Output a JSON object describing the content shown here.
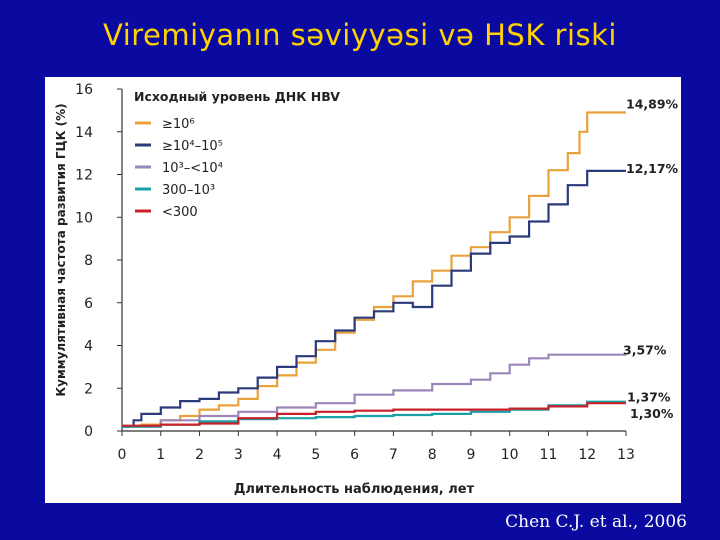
{
  "slide": {
    "title": "Viremiyanın səviyyəsi və HSK riski",
    "citation": "Chen C.J. et al., 2006"
  },
  "colors": {
    "background": "#0a0aa0",
    "title": "#ffd200"
  },
  "chart_data": {
    "type": "line",
    "title": "",
    "xlabel": "Длительность наблюдения, лет",
    "ylabel": "Куммулятивная частота развития ГЦК (%)",
    "xlim": [
      0,
      13
    ],
    "ylim": [
      0,
      16
    ],
    "x_ticks": [
      0,
      1,
      2,
      3,
      4,
      5,
      6,
      7,
      8,
      9,
      10,
      11,
      12,
      13
    ],
    "y_ticks": [
      0,
      2,
      4,
      6,
      8,
      10,
      12,
      14,
      16
    ],
    "grid": false,
    "legend": {
      "title": "Исходный уровень ДНК HBV",
      "placement": "top-left"
    },
    "series": [
      {
        "name": "≥10⁶",
        "color": "#e9a23b",
        "end_label": "14,89%",
        "points": [
          [
            0,
            0.2
          ],
          [
            0.5,
            0.3
          ],
          [
            1,
            0.5
          ],
          [
            1.5,
            0.7
          ],
          [
            2,
            1.0
          ],
          [
            2.5,
            1.2
          ],
          [
            3,
            1.5
          ],
          [
            3.5,
            2.1
          ],
          [
            4,
            2.6
          ],
          [
            4.5,
            3.2
          ],
          [
            5,
            3.8
          ],
          [
            5.5,
            4.6
          ],
          [
            6,
            5.2
          ],
          [
            6.5,
            5.8
          ],
          [
            7,
            6.3
          ],
          [
            7.5,
            7.0
          ],
          [
            8,
            7.5
          ],
          [
            8.5,
            8.2
          ],
          [
            9,
            8.6
          ],
          [
            9.5,
            9.3
          ],
          [
            10,
            10.0
          ],
          [
            10.5,
            11.0
          ],
          [
            11,
            12.2
          ],
          [
            11.5,
            13.0
          ],
          [
            11.8,
            14.0
          ],
          [
            12,
            14.9
          ],
          [
            13,
            14.9
          ]
        ]
      },
      {
        "name": "≥10⁴–10⁵",
        "color": "#2a3a7a",
        "end_label": "12,17%",
        "points": [
          [
            0,
            0.2
          ],
          [
            0.3,
            0.5
          ],
          [
            0.5,
            0.8
          ],
          [
            1,
            1.1
          ],
          [
            1.5,
            1.4
          ],
          [
            2,
            1.5
          ],
          [
            2.5,
            1.8
          ],
          [
            3,
            2.0
          ],
          [
            3.5,
            2.5
          ],
          [
            4,
            3.0
          ],
          [
            4.5,
            3.5
          ],
          [
            5,
            4.2
          ],
          [
            5.5,
            4.7
          ],
          [
            6,
            5.3
          ],
          [
            6.5,
            5.6
          ],
          [
            7,
            6.0
          ],
          [
            7.5,
            5.8
          ],
          [
            8,
            6.8
          ],
          [
            8.5,
            7.5
          ],
          [
            9,
            8.3
          ],
          [
            9.5,
            8.8
          ],
          [
            10,
            9.1
          ],
          [
            10.5,
            9.8
          ],
          [
            11,
            10.6
          ],
          [
            11.5,
            11.5
          ],
          [
            12,
            12.17
          ],
          [
            13,
            12.17
          ]
        ]
      },
      {
        "name": "10³–<10⁴",
        "color": "#9a86b8",
        "end_label": "3,57%",
        "points": [
          [
            0,
            0.2
          ],
          [
            1,
            0.5
          ],
          [
            2,
            0.7
          ],
          [
            3,
            0.9
          ],
          [
            4,
            1.1
          ],
          [
            5,
            1.3
          ],
          [
            6,
            1.7
          ],
          [
            7,
            1.9
          ],
          [
            8,
            2.2
          ],
          [
            9,
            2.4
          ],
          [
            9.5,
            2.7
          ],
          [
            10,
            3.1
          ],
          [
            10.5,
            3.4
          ],
          [
            11,
            3.57
          ],
          [
            13,
            3.57
          ]
        ]
      },
      {
        "name": "300–10³",
        "color": "#1aa0a8",
        "end_label": "1,37%",
        "points": [
          [
            0,
            0.2
          ],
          [
            1,
            0.3
          ],
          [
            2,
            0.45
          ],
          [
            3,
            0.55
          ],
          [
            4,
            0.6
          ],
          [
            5,
            0.65
          ],
          [
            6,
            0.7
          ],
          [
            7,
            0.75
          ],
          [
            8,
            0.8
          ],
          [
            9,
            0.9
          ],
          [
            10,
            1.0
          ],
          [
            11,
            1.2
          ],
          [
            12,
            1.37
          ],
          [
            13,
            1.37
          ]
        ]
      },
      {
        "name": "<300",
        "color": "#c8202a",
        "end_label": "1,30%",
        "points": [
          [
            0,
            0.25
          ],
          [
            1,
            0.3
          ],
          [
            2,
            0.35
          ],
          [
            3,
            0.6
          ],
          [
            4,
            0.8
          ],
          [
            5,
            0.9
          ],
          [
            6,
            0.95
          ],
          [
            7,
            1.0
          ],
          [
            8,
            1.0
          ],
          [
            9,
            1.0
          ],
          [
            10,
            1.05
          ],
          [
            11,
            1.15
          ],
          [
            12,
            1.3
          ],
          [
            13,
            1.3
          ]
        ]
      }
    ]
  }
}
